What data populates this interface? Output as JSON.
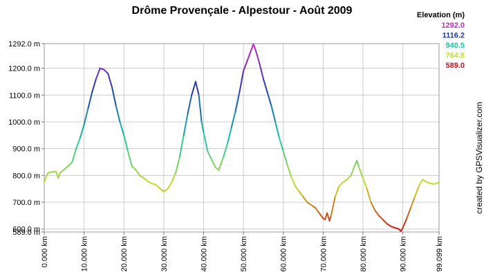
{
  "chart_data": {
    "type": "line",
    "title": "Drôme Provençale - Alpestour - Août 2009",
    "xlabel": "",
    "ylabel": "",
    "xlim": [
      0,
      99.099
    ],
    "ylim": [
      589.0,
      1292.0
    ],
    "grid": true,
    "y_ticks": [
      {
        "value": 1292.0,
        "label": "1292.0 m"
      },
      {
        "value": 1200,
        "label": "1200.0 m"
      },
      {
        "value": 1100,
        "label": "1100.0 m"
      },
      {
        "value": 1000,
        "label": "1000.0 m"
      },
      {
        "value": 900,
        "label": "900.0 m"
      },
      {
        "value": 800,
        "label": "800.0 m"
      },
      {
        "value": 700,
        "label": "700.0 m"
      },
      {
        "value": 600,
        "label": "600.0 m"
      },
      {
        "value": 589.0,
        "label": "589.0 m"
      }
    ],
    "x_ticks": [
      {
        "value": 0,
        "label": "0.000 km"
      },
      {
        "value": 10,
        "label": "10.000 km"
      },
      {
        "value": 20,
        "label": "20.000 km"
      },
      {
        "value": 30,
        "label": "30.000 km"
      },
      {
        "value": 40,
        "label": "40.000 km"
      },
      {
        "value": 50,
        "label": "50.000 km"
      },
      {
        "value": 60,
        "label": "60.000 km"
      },
      {
        "value": 70,
        "label": "70.000 km"
      },
      {
        "value": 80,
        "label": "80.000 km"
      },
      {
        "value": 90,
        "label": "90.000 km"
      },
      {
        "value": 99.099,
        "label": "99.099 km"
      }
    ],
    "legend": {
      "title": "Elevation (m)",
      "placement": "top-right",
      "items": [
        {
          "label": "1292.0",
          "color": "#cc22cc"
        },
        {
          "label": "1116.2",
          "color": "#1f3aa8"
        },
        {
          "label": "940.5",
          "color": "#14c8a8"
        },
        {
          "label": "764.8",
          "color": "#c8dc28"
        },
        {
          "label": "589.0",
          "color": "#d01010"
        }
      ]
    },
    "series": [
      {
        "x": [
          0,
          0.6,
          1,
          2,
          3,
          3.5,
          4,
          5,
          6,
          7,
          8,
          9,
          10,
          11,
          12,
          13,
          14,
          15,
          16,
          17,
          18,
          19,
          20,
          21,
          22,
          23,
          24,
          25,
          26,
          27,
          28,
          29,
          30,
          31,
          32,
          33,
          34,
          35,
          36,
          37,
          38,
          38.8,
          39.5,
          40,
          41,
          42,
          43,
          43.8,
          45,
          46,
          47,
          48,
          49,
          50,
          51,
          52,
          52.5,
          53,
          54,
          55,
          56,
          57,
          58,
          59,
          60,
          61,
          62,
          63,
          64,
          65,
          66,
          67,
          68,
          69,
          70,
          70.5,
          71,
          71.6,
          72,
          73,
          74,
          75,
          76,
          77,
          78,
          78.5,
          79,
          80,
          81,
          82,
          83,
          84,
          85,
          86,
          87,
          88,
          89,
          89.5,
          90,
          91,
          92,
          93,
          94,
          95,
          95.5,
          96,
          97,
          98,
          99.099
        ],
        "y": [
          775,
          800,
          810,
          813,
          815,
          790,
          810,
          822,
          835,
          850,
          900,
          940,
          990,
          1050,
          1110,
          1160,
          1200,
          1195,
          1180,
          1130,
          1060,
          1000,
          950,
          890,
          835,
          820,
          800,
          790,
          778,
          770,
          765,
          752,
          740,
          750,
          775,
          810,
          870,
          950,
          1030,
          1100,
          1150,
          1100,
          1000,
          960,
          890,
          860,
          830,
          820,
          870,
          920,
          980,
          1040,
          1110,
          1190,
          1230,
          1270,
          1290,
          1270,
          1220,
          1160,
          1110,
          1060,
          1000,
          940,
          890,
          840,
          795,
          760,
          740,
          720,
          700,
          690,
          680,
          660,
          640,
          635,
          660,
          630,
          650,
          720,
          760,
          775,
          785,
          800,
          840,
          855,
          830,
          790,
          750,
          700,
          670,
          650,
          635,
          620,
          610,
          605,
          600,
          592,
          605,
          640,
          680,
          720,
          760,
          785,
          780,
          775,
          770,
          768,
          775
        ]
      }
    ],
    "colorscale": [
      "#d01010",
      "#c8dc28",
      "#14c8a8",
      "#1f3aa8",
      "#cc22cc"
    ],
    "credit": "created by GPSVisualizer.com"
  }
}
